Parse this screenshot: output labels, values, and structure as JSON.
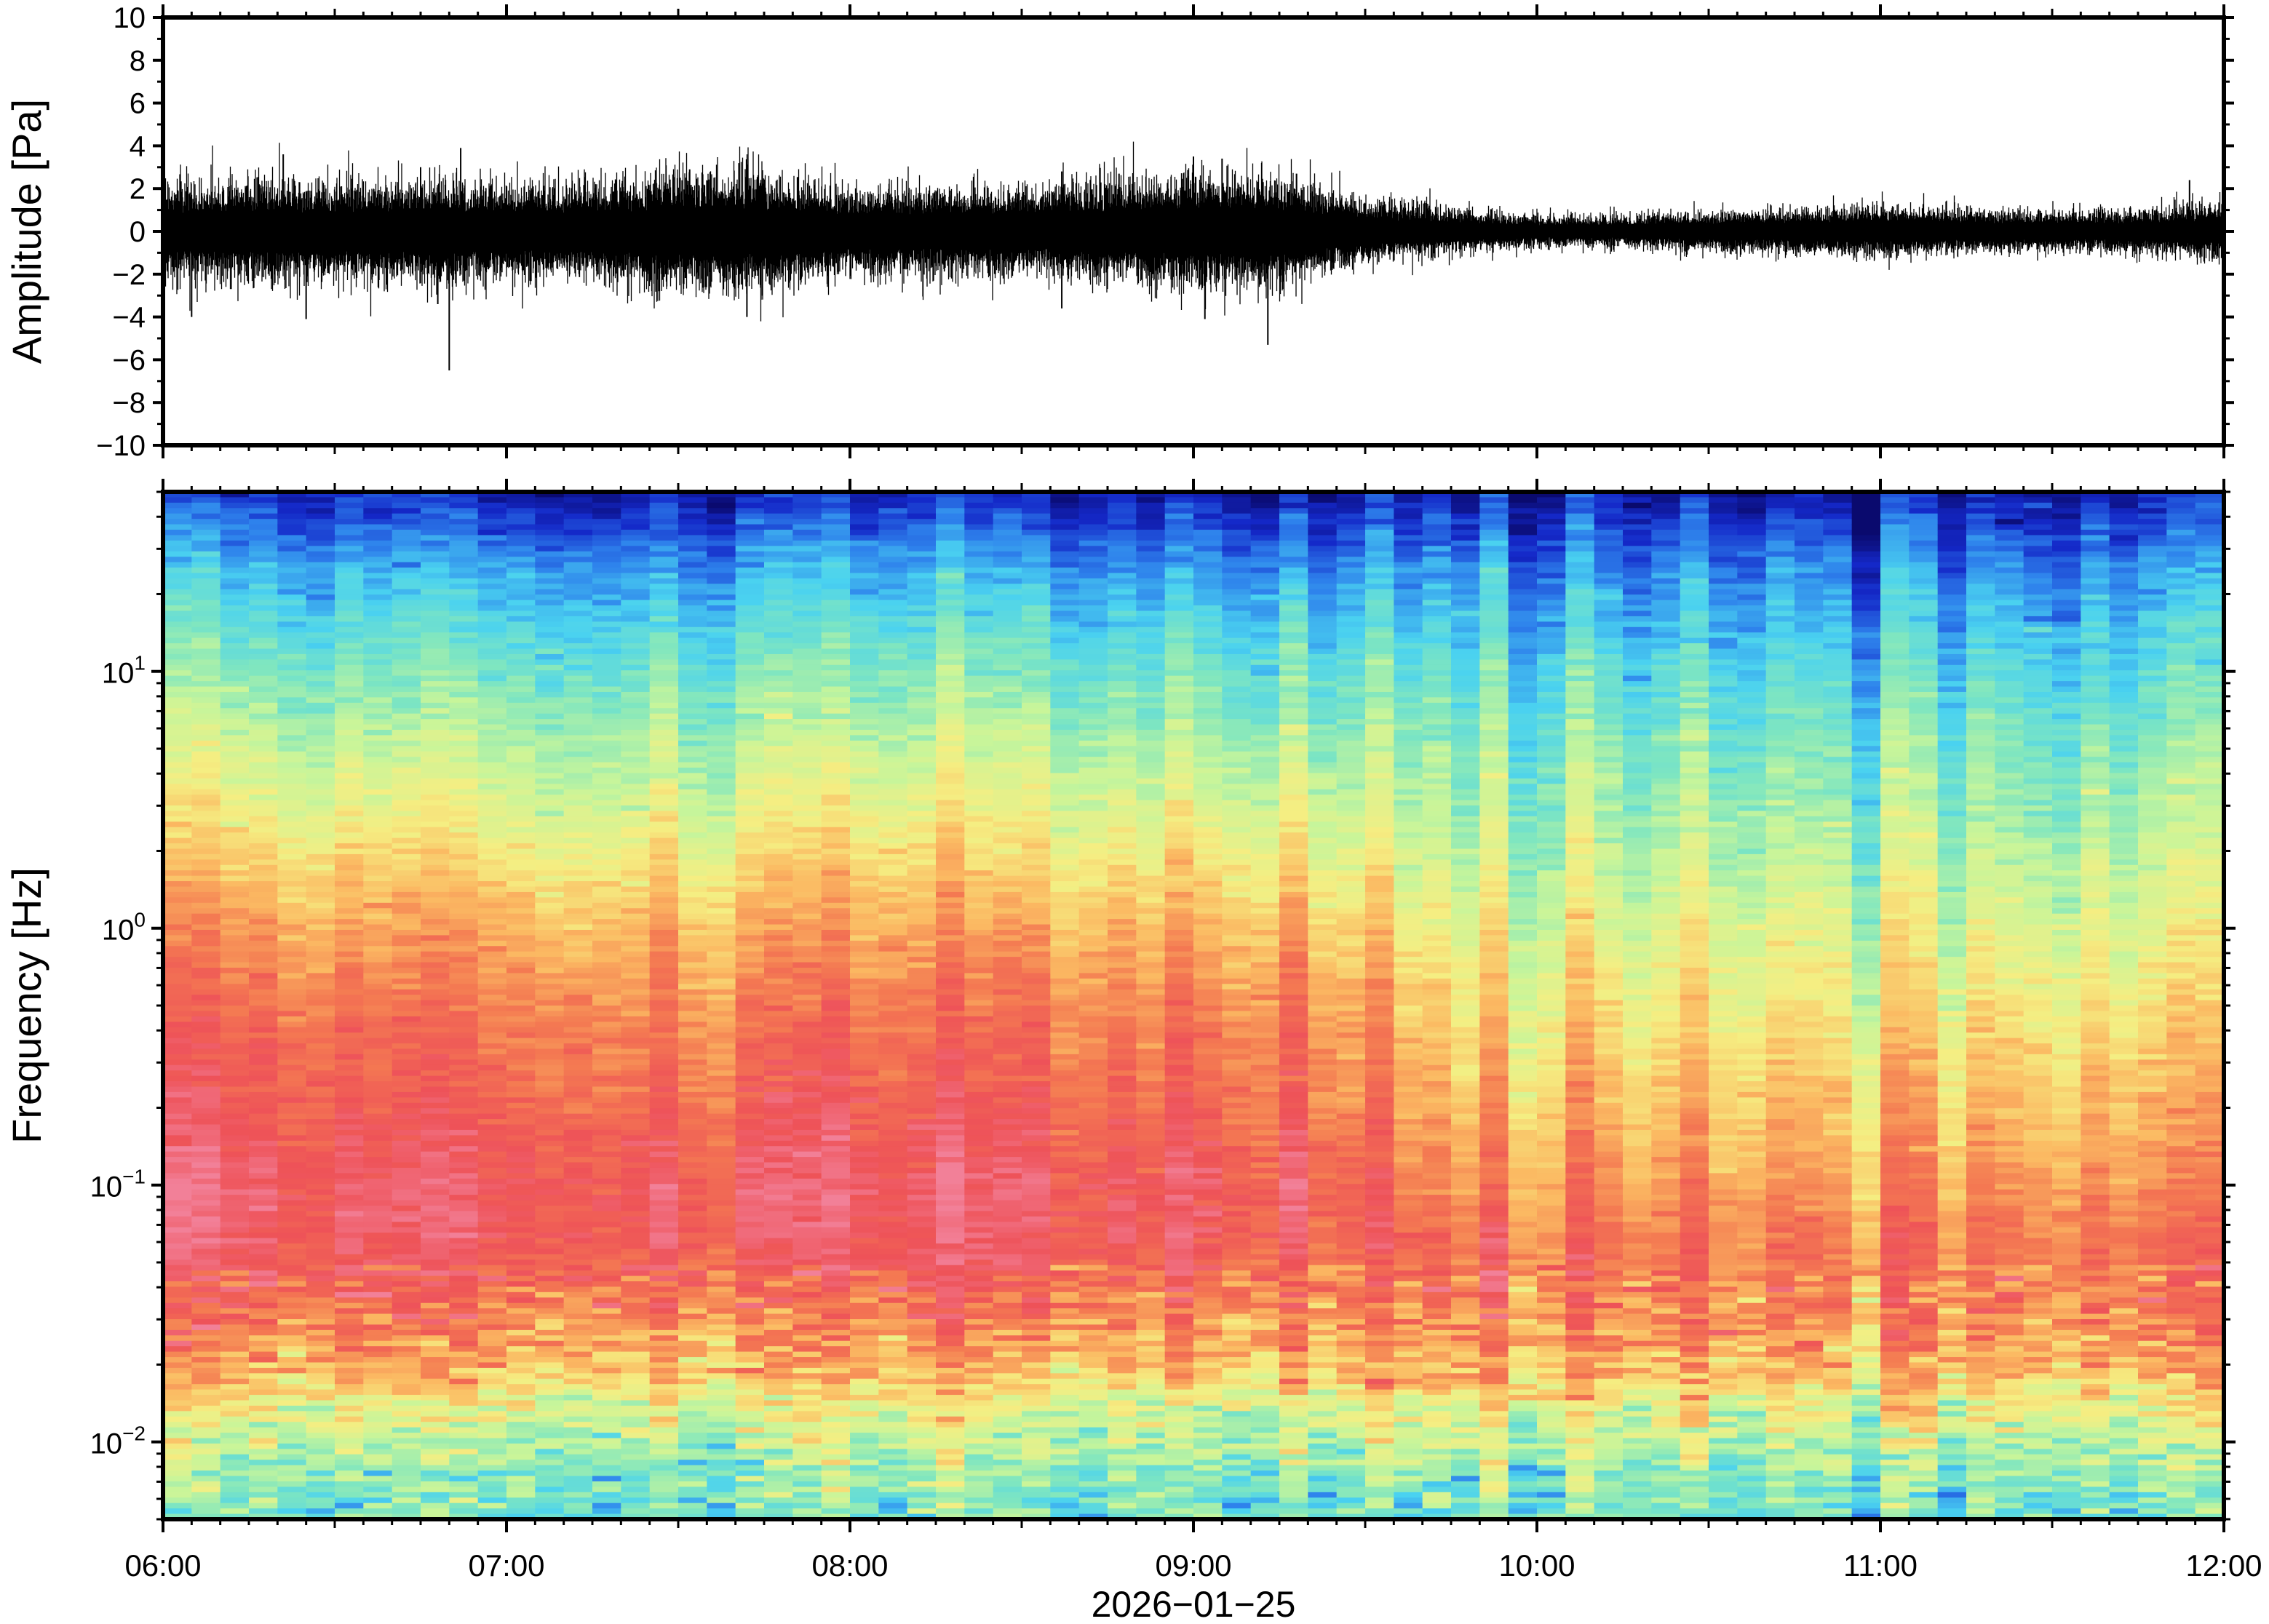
{
  "chart_data": [
    {
      "type": "line",
      "panel": "waveform",
      "ylabel": "Amplitude [Pa]",
      "ylim": [
        -10,
        10
      ],
      "yticks": [
        10,
        8,
        6,
        4,
        2,
        0,
        -2,
        -4,
        -6,
        -8,
        -10
      ],
      "ytick_labels": [
        "10",
        "8",
        "6",
        "4",
        "2",
        "0",
        "−2",
        "−4",
        "−6",
        "−8",
        "−10"
      ],
      "xlim": [
        "06:00",
        "12:00"
      ],
      "line_color": "#000000",
      "envelope": {
        "time": [
          "06:00",
          "06:15",
          "06:30",
          "06:45",
          "07:00",
          "07:15",
          "07:30",
          "07:45",
          "08:00",
          "08:15",
          "08:30",
          "08:45",
          "09:00",
          "09:15",
          "09:30",
          "09:45",
          "10:00",
          "10:15",
          "10:30",
          "10:45",
          "11:00",
          "11:15",
          "11:30",
          "11:45",
          "12:00"
        ],
        "typical_amplitude": [
          1.5,
          1.6,
          1.5,
          1.6,
          1.5,
          1.5,
          1.9,
          1.8,
          1.3,
          1.4,
          1.3,
          1.6,
          1.8,
          1.7,
          1.0,
          0.7,
          0.5,
          0.5,
          0.6,
          0.7,
          0.8,
          0.7,
          0.6,
          0.7,
          0.9
        ]
      },
      "spikes": [
        {
          "time": "06:05",
          "value": -4.0
        },
        {
          "time": "06:21",
          "value": 3.6
        },
        {
          "time": "06:25",
          "value": -4.1
        },
        {
          "time": "06:45",
          "value": 3.0
        },
        {
          "time": "06:48",
          "value": -3.4
        },
        {
          "time": "06:50",
          "value": -6.5
        },
        {
          "time": "06:52",
          "value": 3.9
        },
        {
          "time": "07:32",
          "value": 2.9
        },
        {
          "time": "07:42",
          "value": -4.0
        },
        {
          "time": "08:37",
          "value": 2.8
        },
        {
          "time": "08:37",
          "value": -3.6
        },
        {
          "time": "08:47",
          "value": 2.7
        },
        {
          "time": "09:00",
          "value": 3.5
        },
        {
          "time": "09:02",
          "value": -4.1
        },
        {
          "time": "09:05",
          "value": 3.4
        },
        {
          "time": "09:13",
          "value": -5.3
        },
        {
          "time": "09:18",
          "value": 2.7
        },
        {
          "time": "11:54",
          "value": 2.4
        }
      ]
    },
    {
      "type": "heatmap",
      "panel": "spectrogram",
      "ylabel": "Frequency [Hz]",
      "y_scale": "log",
      "ylim": [
        0.005,
        50
      ],
      "yticks": [
        0.01,
        0.1,
        1,
        10
      ],
      "ytick_labels": [
        {
          "base": "10",
          "exp": "−2"
        },
        {
          "base": "10",
          "exp": "−1"
        },
        {
          "base": "10",
          "exp": "0"
        },
        {
          "base": "10",
          "exp": "1"
        }
      ],
      "xlim": [
        "06:00",
        "12:00"
      ],
      "xticks": [
        "06:00",
        "07:00",
        "08:00",
        "09:00",
        "10:00",
        "11:00",
        "12:00"
      ],
      "xlabel": "2026−01−25",
      "colormap": [
        "#0a0a6e",
        "#1428c8",
        "#2e82ec",
        "#4ad2f0",
        "#7fe6c0",
        "#c8f59a",
        "#f5ee82",
        "#fbb962",
        "#f47a52",
        "#ee5258",
        "#f28098"
      ],
      "level_profile": {
        "frequency": [
          0.005,
          0.008,
          0.012,
          0.02,
          0.035,
          0.06,
          0.1,
          0.2,
          0.4,
          0.8,
          1.5,
          3,
          6,
          12,
          25,
          50
        ],
        "level_06_to_0930": [
          0.4,
          0.46,
          0.55,
          0.72,
          0.84,
          0.93,
          0.94,
          0.88,
          0.84,
          0.77,
          0.68,
          0.58,
          0.49,
          0.39,
          0.27,
          0.1
        ],
        "level_0930_to_1200": [
          0.38,
          0.44,
          0.55,
          0.72,
          0.8,
          0.82,
          0.76,
          0.7,
          0.64,
          0.58,
          0.52,
          0.46,
          0.4,
          0.32,
          0.22,
          0.07
        ]
      }
    }
  ]
}
